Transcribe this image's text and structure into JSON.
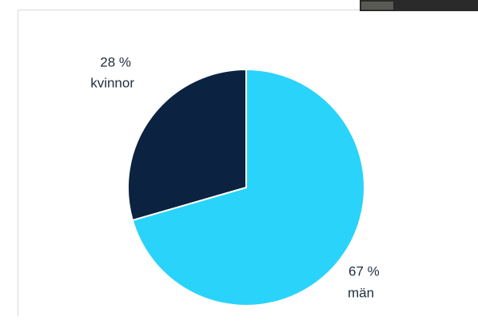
{
  "chart_data": {
    "type": "pie",
    "categories": [
      "kvinnor",
      "män"
    ],
    "values": [
      28,
      67
    ],
    "value_labels": [
      "28 %",
      "67 %"
    ],
    "colors": [
      "#0b2340",
      "#2ad3fa"
    ]
  }
}
